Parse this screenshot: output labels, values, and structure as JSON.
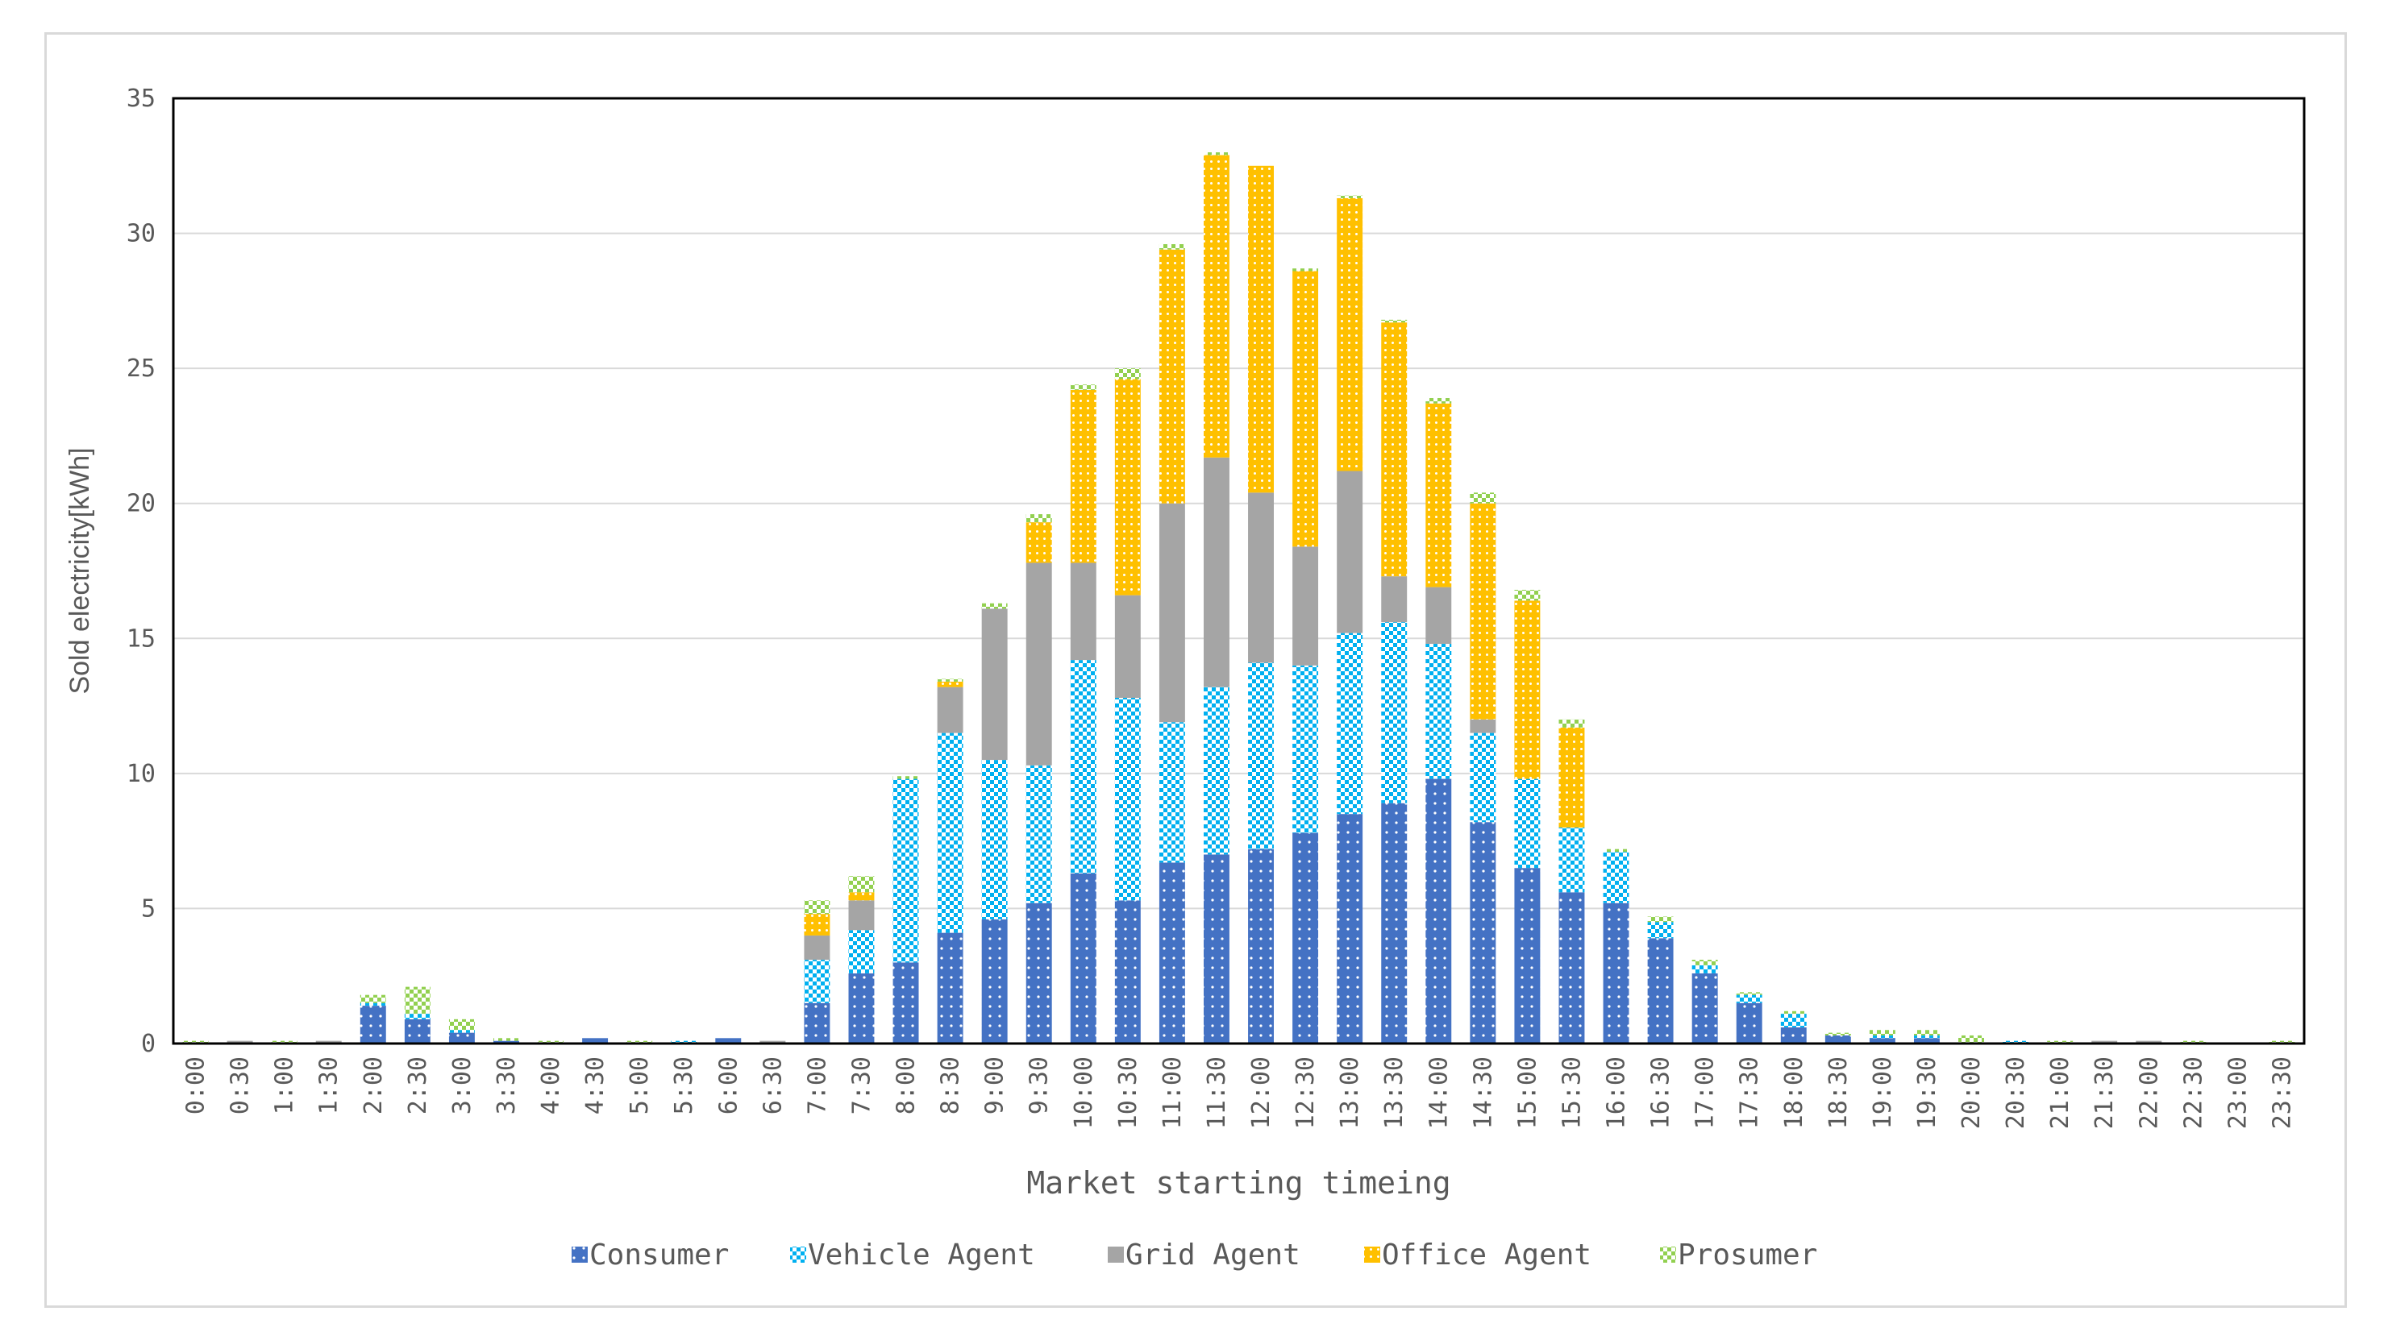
{
  "chart_data": {
    "type": "bar",
    "stacked": true,
    "xlabel": "Market starting timeing",
    "ylabel": "Sold electricity[kWh]",
    "ylim": [
      0,
      35
    ],
    "yticks": [
      0,
      5,
      10,
      15,
      20,
      25,
      30,
      35
    ],
    "grid": true,
    "legend_position": "bottom",
    "categories": [
      "0:00",
      "0:30",
      "1:00",
      "1:30",
      "2:00",
      "2:30",
      "3:00",
      "3:30",
      "4:00",
      "4:30",
      "5:00",
      "5:30",
      "6:00",
      "6:30",
      "7:00",
      "7:30",
      "8:00",
      "8:30",
      "9:00",
      "9:30",
      "10:00",
      "10:30",
      "11:00",
      "11:30",
      "12:00",
      "12:30",
      "13:00",
      "13:30",
      "14:00",
      "14:30",
      "15:00",
      "15:30",
      "16:00",
      "16:30",
      "17:00",
      "17:30",
      "18:00",
      "18:30",
      "19:00",
      "19:30",
      "20:00",
      "20:30",
      "21:00",
      "21:30",
      "22:00",
      "22:30",
      "23:00",
      "23:30"
    ],
    "series": [
      {
        "name": "Consumer",
        "color": "#4472c4",
        "pattern": "dots",
        "values": [
          0,
          0,
          0,
          0,
          1.4,
          0.9,
          0.4,
          0.1,
          0,
          0.2,
          0,
          0,
          0.2,
          0,
          1.5,
          2.6,
          3.0,
          4.1,
          4.6,
          5.2,
          6.3,
          5.3,
          6.7,
          7.0,
          7.2,
          7.8,
          8.5,
          8.9,
          9.8,
          8.2,
          6.5,
          5.6,
          5.2,
          3.9,
          2.6,
          1.5,
          0.6,
          0.3,
          0.2,
          0.2,
          0,
          0,
          0,
          0,
          0,
          0,
          0,
          0
        ]
      },
      {
        "name": "Vehicle Agent",
        "color": "#00b0f0",
        "pattern": "checker",
        "values": [
          0,
          0,
          0,
          0,
          0.1,
          0.2,
          0.1,
          0,
          0,
          0,
          0,
          0.1,
          0,
          0,
          1.6,
          1.6,
          6.8,
          7.4,
          5.9,
          5.1,
          7.9,
          7.5,
          5.2,
          6.2,
          6.9,
          6.2,
          6.7,
          6.7,
          5.0,
          3.3,
          3.3,
          2.4,
          1.9,
          0.6,
          0.3,
          0.3,
          0.5,
          0,
          0.1,
          0.1,
          0,
          0.1,
          0,
          0,
          0,
          0,
          0,
          0
        ]
      },
      {
        "name": "Grid Agent",
        "color": "#a5a5a5",
        "pattern": "none",
        "values": [
          0,
          0.1,
          0,
          0.1,
          0,
          0,
          0,
          0,
          0,
          0,
          0,
          0,
          0,
          0.1,
          0.9,
          1.1,
          0,
          1.7,
          5.6,
          7.5,
          3.6,
          3.8,
          8.1,
          8.5,
          6.3,
          4.4,
          6.0,
          1.7,
          2.1,
          0.5,
          0,
          0,
          0,
          0,
          0,
          0,
          0,
          0,
          0,
          0,
          0,
          0,
          0,
          0.1,
          0.1,
          0,
          0,
          0
        ]
      },
      {
        "name": "Office Agent",
        "color": "#ffc000",
        "pattern": "dots",
        "values": [
          0,
          0,
          0,
          0,
          0,
          0,
          0,
          0,
          0,
          0,
          0,
          0,
          0,
          0,
          0.8,
          0.3,
          0,
          0.2,
          0,
          1.5,
          6.4,
          8.0,
          9.4,
          11.2,
          12.1,
          10.2,
          10.1,
          9.4,
          6.8,
          8.0,
          6.6,
          3.7,
          0,
          0,
          0,
          0,
          0,
          0,
          0,
          0,
          0,
          0,
          0,
          0,
          0,
          0,
          0,
          0
        ]
      },
      {
        "name": "Prosumer",
        "color": "#92d050",
        "pattern": "checker",
        "values": [
          0.1,
          0,
          0.1,
          0,
          0.3,
          1.0,
          0.4,
          0.1,
          0.1,
          0,
          0.1,
          0,
          0,
          0,
          0.5,
          0.6,
          0.1,
          0.1,
          0.2,
          0.3,
          0.2,
          0.4,
          0.2,
          0.1,
          0,
          0.1,
          0.1,
          0.1,
          0.2,
          0.4,
          0.4,
          0.3,
          0.1,
          0.2,
          0.2,
          0.1,
          0.1,
          0.1,
          0.2,
          0.2,
          0.3,
          0,
          0.1,
          0,
          0,
          0.1,
          0,
          0.1
        ]
      }
    ]
  }
}
